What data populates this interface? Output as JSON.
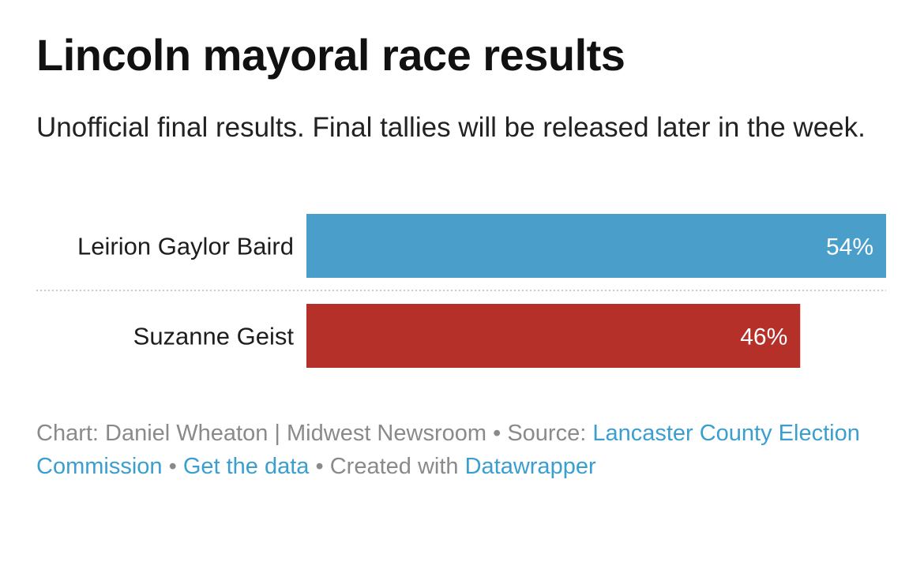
{
  "header": {
    "title": "Lincoln mayoral race results",
    "subtitle": "Unofficial final results. Final tallies will be released later in the week."
  },
  "chart_data": {
    "type": "bar",
    "orientation": "horizontal",
    "categories": [
      "Leirion Gaylor Baird",
      "Suzanne Geist"
    ],
    "values": [
      54,
      46
    ],
    "value_labels": [
      "54%",
      "46%"
    ],
    "colors": [
      "#4a9fca",
      "#b6302a"
    ],
    "unit": "%",
    "xlim": [
      0,
      54
    ],
    "grid": false
  },
  "footer": {
    "chart_prefix": "Chart: Daniel Wheaton | Midwest Newsroom",
    "bullet": "•",
    "source_prefix": "Source: ",
    "source_link": "Lancaster County Election Commission",
    "data_link": "Get the data",
    "created_prefix": "Created with ",
    "created_link": "Datawrapper",
    "link_color": "#3a9fd0"
  }
}
